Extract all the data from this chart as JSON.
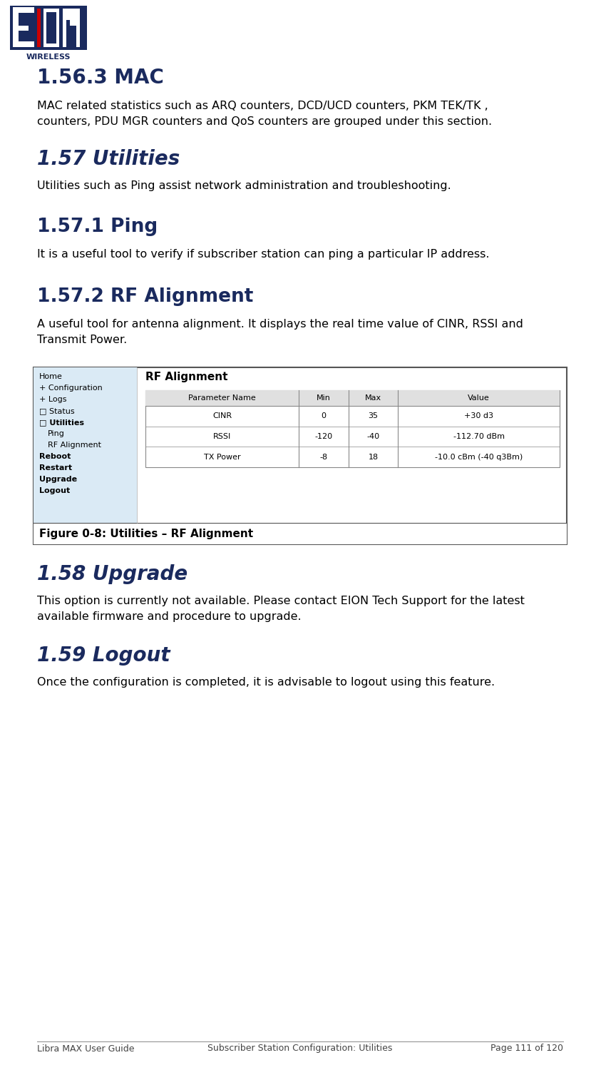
{
  "page_bg": "#ffffff",
  "logo_colors": {
    "e_dark": "#1a2a5e",
    "i_red": "#cc0000",
    "wireless_text": "#1a2a5e"
  },
  "heading_color": "#1a2a5e",
  "body_color": "#000000",
  "italic_heading_color": "#1a2a5e",
  "section_156_3": {
    "title": "1.56.3 MAC",
    "body": "MAC related statistics such as ARQ counters, DCD/UCD counters, PKM TEK/TK ,\ncounters, PDU MGR counters and QoS counters are grouped under this section."
  },
  "section_157": {
    "title": "1.57 Utilities",
    "body": "Utilities such as Ping assist network administration and troubleshooting."
  },
  "section_157_1": {
    "title": "1.57.1 Ping",
    "body": "It is a useful tool to verify if subscriber station can ping a particular IP address."
  },
  "section_157_2": {
    "title": "1.57.2 RF Alignment",
    "body": "A useful tool for antenna alignment. It displays the real time value of CINR, RSSI and\nTransmit Power."
  },
  "figure_caption": "Figure 0-8: Utilities – RF Alignment",
  "figure_sidebar_bg": "#daeaf5",
  "figure_sidebar_items": [
    {
      "text": "Home",
      "bold": false,
      "indent": 0
    },
    {
      "text": "+ Configuration",
      "bold": false,
      "indent": 0
    },
    {
      "text": "+ Logs",
      "bold": false,
      "indent": 0
    },
    {
      "text": "□ Status",
      "bold": false,
      "indent": 0
    },
    {
      "text": "□ Utilities",
      "bold": true,
      "indent": 0
    },
    {
      "text": "Ping",
      "bold": false,
      "indent": 12
    },
    {
      "text": "RF Alignment",
      "bold": false,
      "indent": 12
    },
    {
      "text": "Reboot",
      "bold": true,
      "indent": 0
    },
    {
      "text": "Restart",
      "bold": true,
      "indent": 0
    },
    {
      "text": "Upgrade",
      "bold": true,
      "indent": 0
    },
    {
      "text": "Logout",
      "bold": true,
      "indent": 0
    }
  ],
  "figure_title": "RF Alignment",
  "figure_table_header": [
    "Parameter Name",
    "Min",
    "Max",
    "Value"
  ],
  "figure_table_rows": [
    [
      "CINR",
      "0",
      "35",
      "+30 d3"
    ],
    [
      "RSSI",
      "-120",
      "-40",
      "-112.70 dBm"
    ],
    [
      "TX Power",
      "-8",
      "18",
      "-10.0 cBm (-40 q3Bm)"
    ]
  ],
  "figure_table_header_bg": "#e0e0e0",
  "section_158": {
    "title": "1.58 Upgrade",
    "body": "This option is currently not available. Please contact EION Tech Support for the latest\navailable firmware and procedure to upgrade."
  },
  "section_159": {
    "title": "1.59 Logout",
    "body": "Once the configuration is completed, it is advisable to logout using this feature."
  },
  "footer_left": "Libra MAX User Guide",
  "footer_center": "Subscriber Station Configuration: Utilities",
  "footer_right": "Page 111 of 120",
  "footer_color": "#444444"
}
